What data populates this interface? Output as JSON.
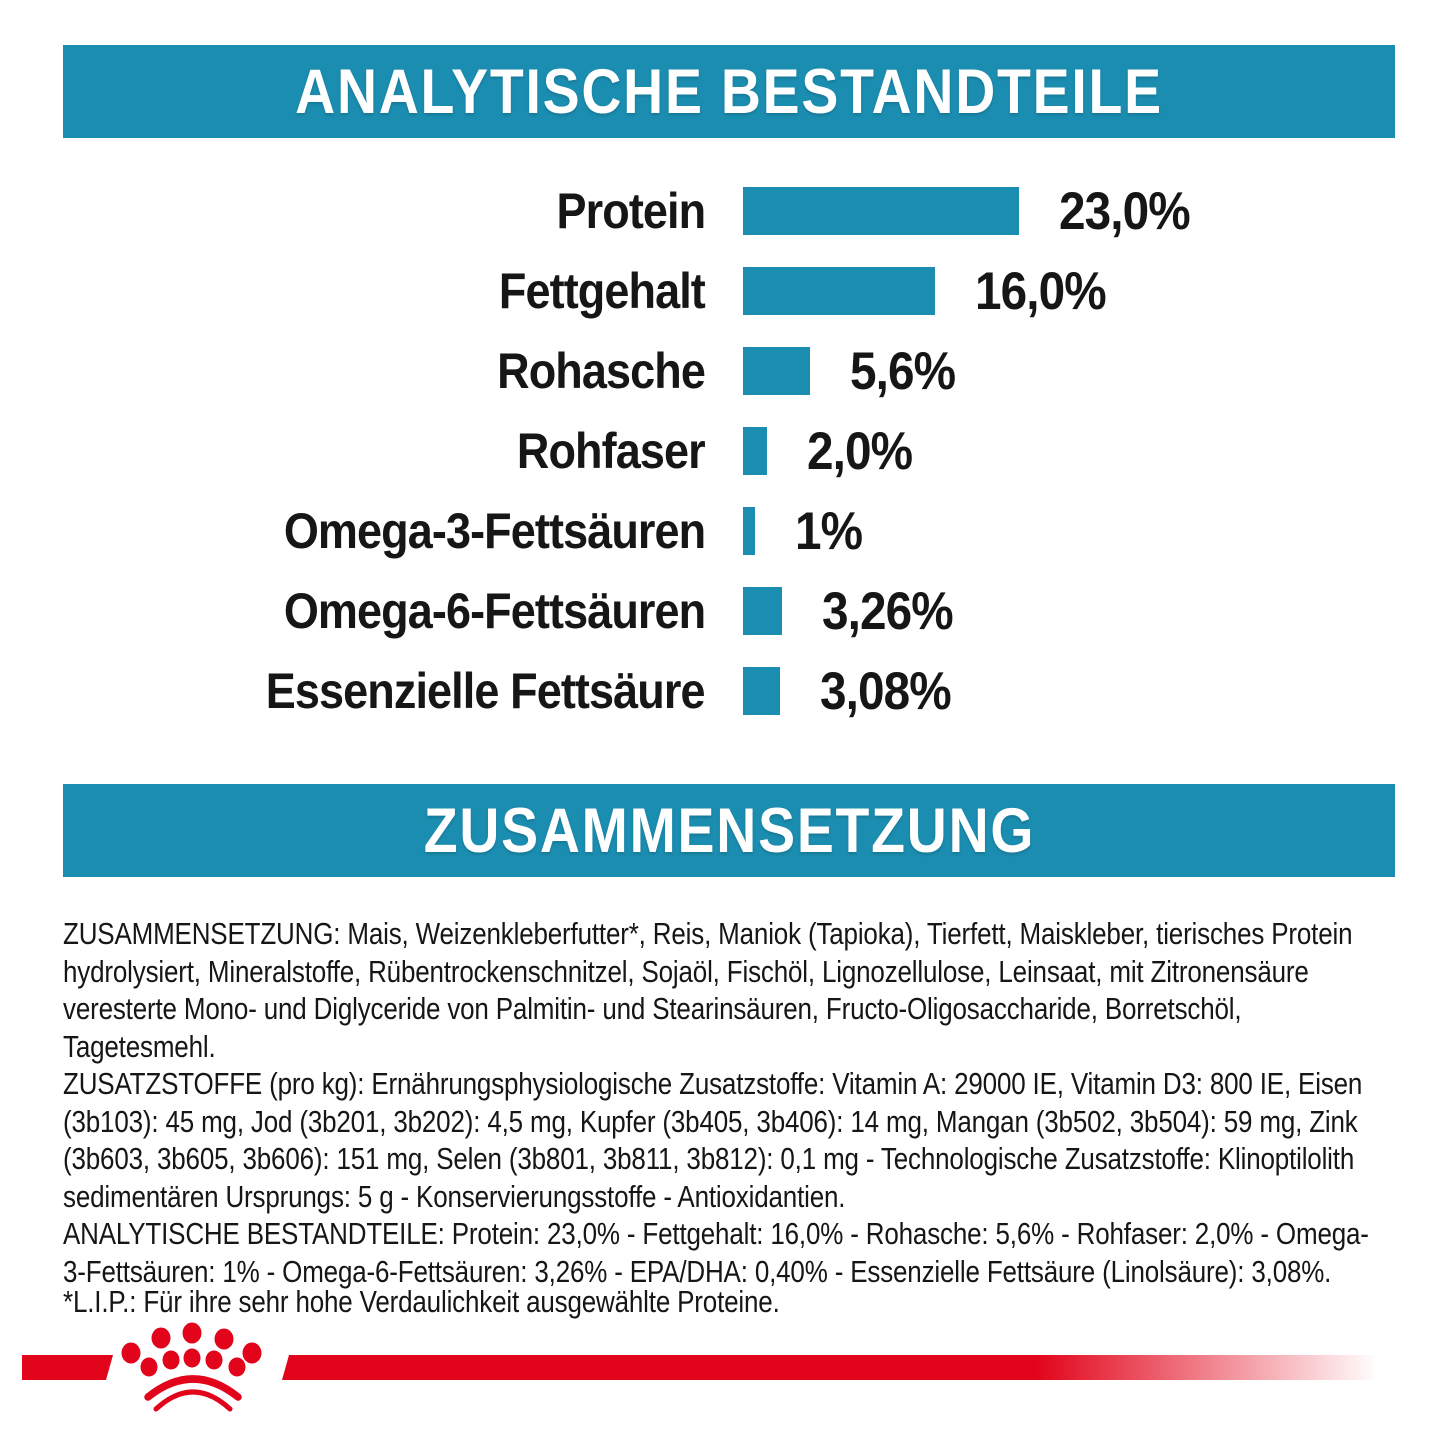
{
  "sections": {
    "analytical_title": "ANALYTISCHE BESTANDTEILE",
    "composition_title": "ZUSAMMENSETZUNG"
  },
  "chart_data": {
    "type": "bar",
    "orientation": "horizontal",
    "title": "ANALYTISCHE BESTANDTEILE",
    "categories": [
      "Protein",
      "Fettgehalt",
      "Rohasche",
      "Rohfaser",
      "Omega-3-Fettsäuren",
      "Omega-6-Fettsäuren",
      "Essenzielle Fettsäure"
    ],
    "values": [
      23.0,
      16.0,
      5.6,
      2.0,
      1.0,
      3.26,
      3.08
    ],
    "value_labels": [
      "23,0%",
      "16,0%",
      "5,6%",
      "2,0%",
      "1%",
      "3,26%",
      "3,08%"
    ],
    "unit": "%",
    "xlim": [
      0,
      23
    ],
    "grid": false,
    "legend": false,
    "bar_color": "#1b8db0"
  },
  "composition": {
    "zusammensetzung": "ZUSAMMENSETZUNG: Mais, Weizenkleberfutter*, Reis, Maniok (Tapioka), Tierfett, Maiskleber, tierisches Protein hydrolysiert, Mineralstoffe, Rübentrockenschnitzel, Sojaöl, Fischöl, Lignozellulose, Leinsaat, mit Zitronensäure veresterte Mono- und Diglyceride von Palmitin- und Stearinsäuren, Fructo-Oligosaccharide, Borretschöl, Tagetesmehl.",
    "zusatzstoffe": "ZUSATZSTOFFE (pro kg): Ernährungsphysiologische Zusatzstoffe: Vitamin A: 29000 IE, Vitamin D3: 800 IE, Eisen (3b103): 45 mg, Jod (3b201, 3b202): 4,5 mg, Kupfer (3b405, 3b406): 14 mg, Mangan (3b502, 3b504): 59 mg, Zink (3b603, 3b605, 3b606): 151 mg, Selen (3b801, 3b811, 3b812): 0,1 mg - Technologische Zusatzstoffe: Klinoptilolith sedimentären Ursprungs: 5 g - Konservierungsstoffe - Antioxidantien.",
    "analytische_bestandteile": "ANALYTISCHE BESTANDTEILE: Protein: 23,0% - Fettgehalt: 16,0% - Rohasche: 5,6% - Rohfaser: 2,0% - Omega-3-Fettsäuren: 1% - Omega-6-Fettsäuren: 3,26% - EPA/DHA: 0,40% - Essenzielle Fettsäure (Linolsäure): 3,08%."
  },
  "footnote": "*L.I.P.: Für ihre sehr hohe Verdaulichkeit ausgewählte Proteine.",
  "colors": {
    "teal": "#1b8db0",
    "brand_red": "#e2041a",
    "text": "#161616",
    "background": "#ffffff"
  }
}
